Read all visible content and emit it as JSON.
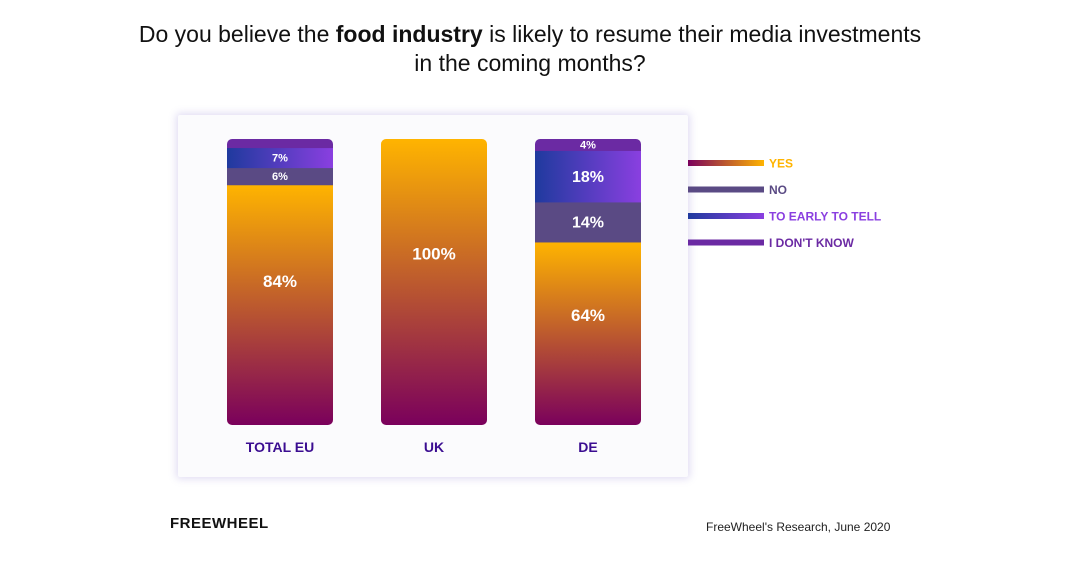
{
  "title": {
    "before": "Do you believe the ",
    "bold": "food industry",
    "after": " is likely to resume their media investments in the coming months?"
  },
  "footer": {
    "logo": "FREEWHEEL",
    "source": "FreeWheel's Research, June 2020"
  },
  "colors": {
    "yes_top": "#ffb400",
    "yes_bottom": "#7a005c",
    "no": "#5a4a84",
    "early_left": "#1f3a9e",
    "early_right": "#8a3fe0",
    "dont_know": "#6b2aa3",
    "category_label": "#3b0d91"
  },
  "chart_data": {
    "type": "bar",
    "stacked": true,
    "categories": [
      "TOTAL EU",
      "UK",
      "DE"
    ],
    "series": [
      {
        "name": "YES",
        "values": [
          84,
          100,
          64
        ]
      },
      {
        "name": "NO",
        "values": [
          6,
          0,
          14
        ]
      },
      {
        "name": "TO EARLY TO TELL",
        "values": [
          7,
          0,
          18
        ]
      },
      {
        "name": "I DON'T KNOW",
        "values": [
          3,
          0,
          4
        ]
      }
    ],
    "data_labels": [
      [
        "84%",
        "100%",
        "64%"
      ],
      [
        "6%",
        "",
        "14%"
      ],
      [
        "7%",
        "",
        "18%"
      ],
      [
        "",
        "",
        "4%"
      ]
    ],
    "ylim": [
      0,
      100
    ],
    "grid": false,
    "legend_position": "right"
  }
}
